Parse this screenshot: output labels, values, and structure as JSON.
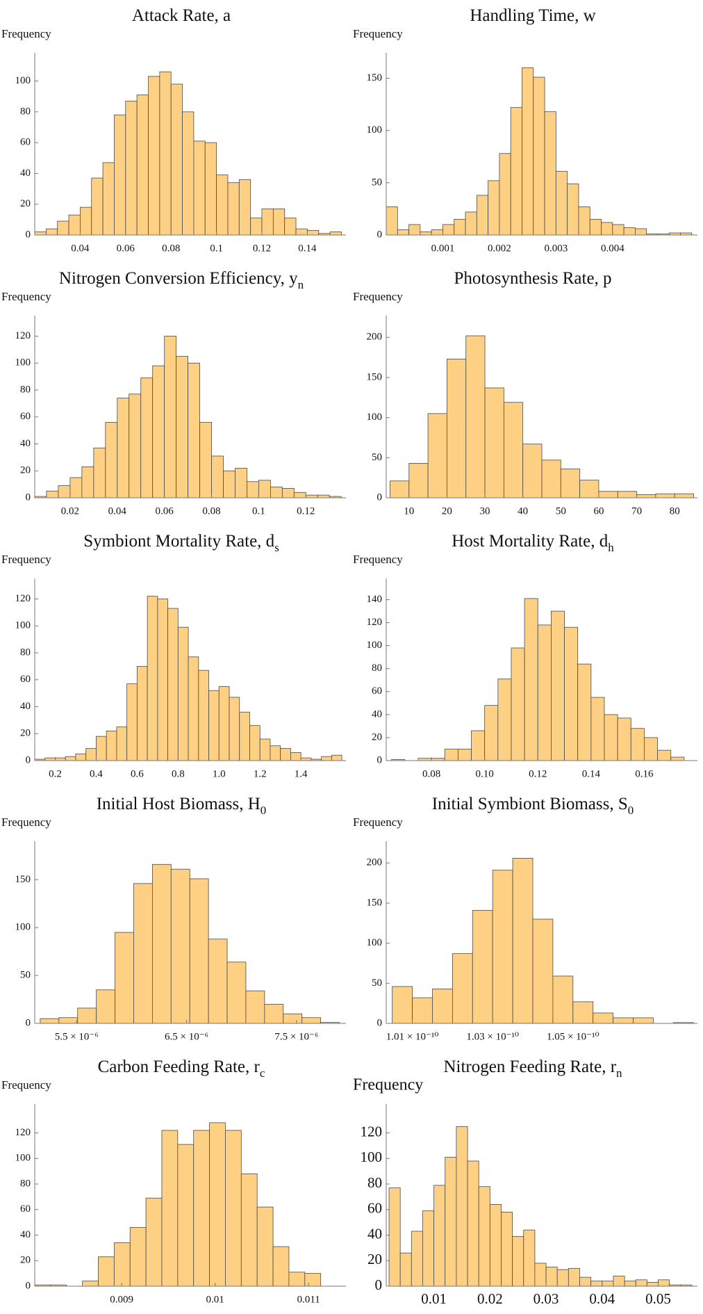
{
  "chart_data": [
    {
      "type": "histogram",
      "title": "Attack Rate, a",
      "ylabel": "Frequency",
      "bins": [
        0.02,
        0.025,
        0.03,
        0.035,
        0.04,
        0.045,
        0.05,
        0.055,
        0.06,
        0.065,
        0.07,
        0.075,
        0.08,
        0.085,
        0.09,
        0.095,
        0.1,
        0.105,
        0.11,
        0.115,
        0.12,
        0.125,
        0.13,
        0.135,
        0.14,
        0.145,
        0.15,
        0.155
      ],
      "counts": [
        2,
        4,
        9,
        13,
        18,
        37,
        47,
        78,
        87,
        91,
        103,
        106,
        98,
        80,
        61,
        60,
        39,
        34,
        36,
        11,
        17,
        17,
        11,
        4,
        3,
        1,
        2
      ],
      "xlim": [
        0.02,
        0.157
      ],
      "xticks": [
        0.04,
        0.06,
        0.08,
        0.1,
        0.12,
        0.14
      ],
      "ylim": [
        0,
        112
      ],
      "yticks": [
        0,
        20,
        40,
        60,
        80,
        100
      ],
      "color": "#fdd083"
    },
    {
      "type": "histogram",
      "title": "Handling Time, w",
      "ylabel": "Frequency",
      "bins": [
        0,
        0.0002,
        0.0004,
        0.0006,
        0.0008,
        0.001,
        0.0012,
        0.0014,
        0.0016,
        0.0018,
        0.002,
        0.0022,
        0.0024,
        0.0026,
        0.0028,
        0.003,
        0.0032,
        0.0034,
        0.0036,
        0.0038,
        0.004,
        0.0042,
        0.0044,
        0.0046,
        0.0048,
        0.005,
        0.0052,
        0.0054
      ],
      "counts": [
        27,
        5,
        10,
        3,
        5,
        10,
        15,
        22,
        38,
        52,
        78,
        122,
        160,
        151,
        118,
        61,
        49,
        27,
        15,
        12,
        10,
        7,
        6,
        1,
        1,
        2,
        2
      ],
      "xlim": [
        0,
        0.0055
      ],
      "xticks": [
        0.001,
        0.002,
        0.003,
        0.004
      ],
      "ylim": [
        0,
        165
      ],
      "yticks": [
        0,
        50,
        100,
        150
      ],
      "color": "#fdd083"
    },
    {
      "type": "histogram",
      "title": "Nitrogen Conversion Efficiency, y",
      "title_sub": "n",
      "ylabel": "Frequency",
      "bins": [
        0.005,
        0.01,
        0.015,
        0.02,
        0.025,
        0.03,
        0.035,
        0.04,
        0.045,
        0.05,
        0.055,
        0.06,
        0.065,
        0.07,
        0.075,
        0.08,
        0.085,
        0.09,
        0.095,
        0.1,
        0.105,
        0.11,
        0.115,
        0.12,
        0.125,
        0.13,
        0.135
      ],
      "counts": [
        1,
        5,
        9,
        15,
        23,
        37,
        56,
        74,
        77,
        89,
        98,
        120,
        105,
        100,
        56,
        31,
        20,
        22,
        12,
        13,
        8,
        7,
        4,
        2,
        2,
        1
      ],
      "xlim": [
        0.005,
        0.137
      ],
      "xticks": [
        0.02,
        0.04,
        0.06,
        0.08,
        0.1,
        0.12
      ],
      "ylim": [
        0,
        128
      ],
      "yticks": [
        0,
        20,
        40,
        60,
        80,
        100,
        120
      ],
      "color": "#fdd083"
    },
    {
      "type": "histogram",
      "title": "Photosynthesis Rate, p",
      "ylabel": "Frequency",
      "bins": [
        5,
        10,
        15,
        20,
        25,
        30,
        35,
        40,
        45,
        50,
        55,
        60,
        65,
        70,
        75,
        80,
        85
      ],
      "counts": [
        21,
        43,
        105,
        173,
        202,
        137,
        119,
        67,
        47,
        36,
        22,
        8,
        8,
        4,
        5,
        5
      ],
      "xlim": [
        4,
        86
      ],
      "xticks": [
        10,
        20,
        30,
        40,
        50,
        60,
        70,
        80
      ],
      "ylim": [
        0,
        215
      ],
      "yticks": [
        0,
        50,
        100,
        150,
        200
      ],
      "color": "#fdd083"
    },
    {
      "type": "histogram",
      "title": "Symbiont Mortality Rate,  d",
      "title_sub": "s",
      "ylabel": "Frequency",
      "bins": [
        0.1,
        0.15,
        0.2,
        0.25,
        0.3,
        0.35,
        0.4,
        0.45,
        0.5,
        0.55,
        0.6,
        0.65,
        0.7,
        0.75,
        0.8,
        0.85,
        0.9,
        0.95,
        1.0,
        1.05,
        1.1,
        1.15,
        1.2,
        1.25,
        1.3,
        1.35,
        1.4,
        1.45,
        1.5,
        1.55,
        1.6
      ],
      "counts": [
        1,
        2,
        2,
        3,
        5,
        9,
        18,
        22,
        25,
        57,
        70,
        122,
        120,
        113,
        99,
        77,
        67,
        52,
        55,
        47,
        36,
        26,
        16,
        11,
        9,
        6,
        2,
        1,
        3,
        4
      ],
      "xlim": [
        0.1,
        1.62
      ],
      "xticks": [
        0.2,
        0.4,
        0.6,
        0.8,
        {
          "value": 1,
          "label": "1.0"
        },
        1.2,
        1.4
      ],
      "ylim": [
        0,
        128
      ],
      "yticks": [
        0,
        20,
        40,
        60,
        80,
        100,
        120
      ],
      "color": "#fdd083"
    },
    {
      "type": "histogram",
      "title": "Host Mortality Rate,  d",
      "title_sub": "h",
      "ylabel": "Frequency",
      "bins": [
        0.065,
        0.07,
        0.075,
        0.08,
        0.085,
        0.09,
        0.095,
        0.1,
        0.105,
        0.11,
        0.115,
        0.12,
        0.125,
        0.13,
        0.135,
        0.14,
        0.145,
        0.15,
        0.155,
        0.16,
        0.165,
        0.17,
        0.175
      ],
      "counts": [
        1,
        0,
        2,
        2,
        10,
        10,
        26,
        48,
        71,
        98,
        141,
        118,
        130,
        116,
        84,
        55,
        40,
        37,
        28,
        20,
        9,
        3
      ],
      "xlim": [
        0.063,
        0.18
      ],
      "xticks": [
        0.08,
        {
          "value": 0.1,
          "label": "0.10"
        },
        0.12,
        0.14,
        0.16
      ],
      "ylim": [
        0,
        150
      ],
      "yticks": [
        0,
        20,
        40,
        60,
        80,
        100,
        120,
        140
      ],
      "color": "#fdd083"
    },
    {
      "type": "histogram",
      "title": "Initial Host Biomass,  H",
      "title_sub": "0",
      "ylabel": "Frequency",
      "bins": [
        5.17e-06,
        5.34e-06,
        5.51e-06,
        5.68e-06,
        5.85e-06,
        6.02e-06,
        6.19e-06,
        6.36e-06,
        6.53e-06,
        6.7e-06,
        6.87e-06,
        7.04e-06,
        7.21e-06,
        7.38e-06,
        7.55e-06,
        7.72e-06,
        7.89e-06
      ],
      "counts": [
        5,
        6,
        16,
        35,
        95,
        146,
        166,
        161,
        151,
        88,
        64,
        34,
        20,
        10,
        6,
        1
      ],
      "xlim": [
        5.12e-06,
        7.95e-06
      ],
      "xticks": [
        {
          "value": 5.5e-06,
          "label": "5.5 × 10⁻⁶"
        },
        {
          "value": 6.5e-06,
          "label": "6.5 × 10⁻⁶"
        },
        {
          "value": 7.5e-06,
          "label": "7.5 × 10⁻⁶"
        }
      ],
      "ylim": [
        0,
        180
      ],
      "yticks": [
        0,
        50,
        100,
        150
      ],
      "color": "#fdd083"
    },
    {
      "type": "histogram",
      "title": "Initial Symbiont Biomass,  S",
      "title_sub": "0",
      "ylabel": "Frequency",
      "bins": [
        1.005e-10,
        1.01e-10,
        1.015e-10,
        1.02e-10,
        1.025e-10,
        1.03e-10,
        1.035e-10,
        1.04e-10,
        1.045e-10,
        1.05e-10,
        1.055e-10,
        1.06e-10,
        1.065e-10,
        1.07e-10,
        1.075e-10,
        1.08e-10
      ],
      "counts": [
        46,
        32,
        43,
        87,
        141,
        191,
        206,
        130,
        59,
        27,
        13,
        7,
        7,
        0,
        1
      ],
      "xlim": [
        1.0035e-10,
        1.081e-10
      ],
      "xticks": [
        {
          "value": 1.01e-10,
          "label": "1.01 × 10⁻¹⁰"
        },
        {
          "value": 1.03e-10,
          "label": "1.03 × 10⁻¹⁰"
        },
        {
          "value": 1.05e-10,
          "label": "1.05 × 10⁻¹⁰"
        }
      ],
      "ylim": [
        0,
        215
      ],
      "yticks": [
        0,
        50,
        100,
        150,
        200
      ],
      "color": "#fdd083"
    },
    {
      "type": "histogram",
      "title": "Carbon Feeding Rate,  r",
      "title_sub": "c",
      "ylabel": "Frequency",
      "bins": [
        0.00807,
        0.00824,
        0.00841,
        0.00858,
        0.00875,
        0.00892,
        0.00909,
        0.00926,
        0.00943,
        0.0096,
        0.00977,
        0.00994,
        0.01011,
        0.01028,
        0.01045,
        0.01062,
        0.01079,
        0.01096,
        0.01113
      ],
      "counts": [
        1,
        1,
        0,
        4,
        23,
        34,
        46,
        69,
        122,
        111,
        122,
        128,
        122,
        88,
        62,
        31,
        11,
        10
      ],
      "xlim": [
        0.00807,
        0.0114
      ],
      "xticks": [
        0.009,
        0.01,
        0.011
      ],
      "ylim": [
        0,
        135
      ],
      "yticks": [
        0,
        20,
        40,
        60,
        80,
        100,
        120
      ],
      "color": "#fdd083"
    },
    {
      "type": "histogram",
      "title": "Nitrogen Feeding Rate,  r",
      "title_sub": "n",
      "ylabel": "Frequency",
      "bins": [
        0.002,
        0.004,
        0.006,
        0.008,
        0.01,
        0.012,
        0.014,
        0.016,
        0.018,
        0.02,
        0.022,
        0.024,
        0.026,
        0.028,
        0.03,
        0.032,
        0.034,
        0.036,
        0.038,
        0.04,
        0.042,
        0.044,
        0.046,
        0.048,
        0.05,
        0.052,
        0.054,
        0.056
      ],
      "counts": [
        77,
        26,
        43,
        59,
        79,
        101,
        125,
        98,
        78,
        64,
        58,
        39,
        44,
        18,
        15,
        13,
        14,
        7,
        4,
        4,
        8,
        4,
        5,
        3,
        5,
        1,
        1
      ],
      "xlim": [
        0.0015,
        0.057
      ],
      "xticks": [
        0.01,
        0.02,
        0.03,
        0.04,
        0.05
      ],
      "ylim": [
        0,
        135
      ],
      "yticks": [
        0,
        20,
        40,
        60,
        80,
        100,
        120
      ],
      "color": "#fdd083"
    }
  ]
}
